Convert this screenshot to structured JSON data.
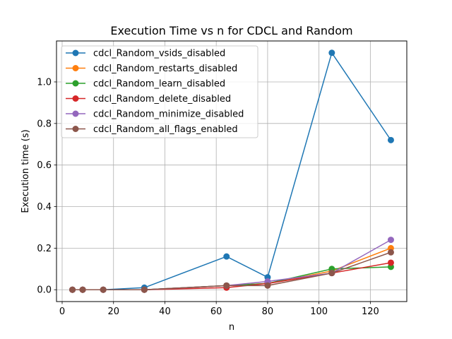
{
  "chart_data": {
    "type": "line",
    "title": "Execution Time vs n for CDCL and Random",
    "xlabel": "n",
    "ylabel": "Execution time (s)",
    "xlim": [
      -2.2,
      134.2
    ],
    "ylim": [
      -0.057,
      1.197
    ],
    "xticks": [
      0,
      20,
      40,
      60,
      80,
      100,
      120
    ],
    "yticks": [
      0.0,
      0.2,
      0.4,
      0.6,
      0.8,
      1.0
    ],
    "grid": true,
    "legend_position": "top-left",
    "x": [
      4,
      8,
      16,
      32,
      64,
      80,
      105,
      128
    ],
    "series": [
      {
        "name": "cdcl_Random_vsids_disabled",
        "color": "#1f77b4",
        "values": [
          0.0,
          0.0,
          0.0,
          0.01,
          0.16,
          0.06,
          1.14,
          0.72
        ]
      },
      {
        "name": "cdcl_Random_restarts_disabled",
        "color": "#ff7f0e",
        "values": [
          0.0,
          0.0,
          0.0,
          0.0,
          0.02,
          0.03,
          0.09,
          0.2
        ]
      },
      {
        "name": "cdcl_Random_learn_disabled",
        "color": "#2ca02c",
        "values": [
          0.0,
          0.0,
          0.0,
          0.0,
          0.02,
          0.03,
          0.1,
          0.11
        ]
      },
      {
        "name": "cdcl_Random_delete_disabled",
        "color": "#d62728",
        "values": [
          0.0,
          0.0,
          0.0,
          0.0,
          0.01,
          0.03,
          0.08,
          0.13
        ]
      },
      {
        "name": "cdcl_Random_minimize_disabled",
        "color": "#9467bd",
        "values": [
          0.0,
          0.0,
          0.0,
          0.0,
          0.02,
          0.04,
          0.08,
          0.24
        ]
      },
      {
        "name": "cdcl_Random_all_flags_enabled",
        "color": "#8c564b",
        "values": [
          0.0,
          0.0,
          0.0,
          0.0,
          0.02,
          0.02,
          0.08,
          0.18
        ]
      }
    ]
  }
}
